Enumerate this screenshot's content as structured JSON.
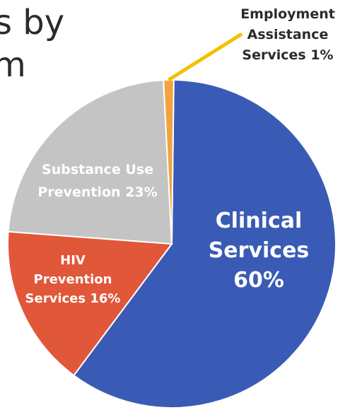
{
  "heading_fragments": [
    "s by",
    "m"
  ],
  "chart_data": {
    "type": "pie",
    "slices": [
      {
        "label_lines": [
          "Clinical",
          "Services",
          "60%"
        ],
        "value": 60,
        "color": "#3a5bb5",
        "label_color": "#ffffff"
      },
      {
        "label_lines": [
          "HIV",
          "Prevention",
          "Services 16%"
        ],
        "value": 16,
        "color": "#e1573a",
        "label_color": "#ffffff"
      },
      {
        "label_lines": [
          "Substance Use",
          "Prevention 23%"
        ],
        "value": 23,
        "color": "#c4c4c4",
        "label_color": "#ffffff"
      },
      {
        "label_lines": [
          "Employment",
          "Assistance",
          "Services 1%"
        ],
        "value": 1,
        "color": "#f0a340",
        "label_color": "#2b2b2b"
      }
    ],
    "legend": "none",
    "leader_line_color": "#f2c100"
  }
}
